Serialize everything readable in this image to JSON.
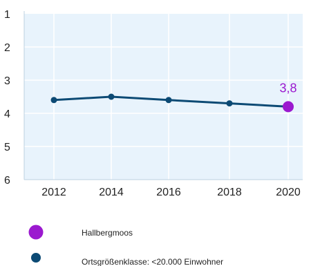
{
  "colors": {
    "plot_background": "#e8f3fc",
    "grid": "#ffffff",
    "axis": "#bcd0e0",
    "region_series": "#0c4a74",
    "highlight": "#9b19cf"
  },
  "chart_data": {
    "type": "line",
    "x": [
      2012,
      2014,
      2016,
      2018,
      2020
    ],
    "x_ticks": [
      "2012",
      "2014",
      "2016",
      "2018",
      "2020"
    ],
    "y_ticks": [
      "1",
      "2",
      "3",
      "4",
      "5",
      "6"
    ],
    "ylim": [
      1,
      6
    ],
    "y_inverted": true,
    "grid": true,
    "legend_position": "bottom-left",
    "series": [
      {
        "name": "Ortsgrößenklasse: <20.000 Einwohner",
        "values": [
          3.6,
          3.5,
          3.6,
          3.7,
          3.8
        ],
        "color": "#0c4a74"
      }
    ],
    "highlight_point": {
      "name": "Hallbergmoos",
      "x": 2020,
      "value": 3.8,
      "label": "3,8",
      "color": "#9b19cf"
    }
  },
  "legend": {
    "items": [
      {
        "label": "Hallbergmoos",
        "color": "#9b19cf"
      },
      {
        "label": "Ortsgrößenklasse: <20.000 Einwohner",
        "color": "#0c4a74"
      }
    ]
  }
}
